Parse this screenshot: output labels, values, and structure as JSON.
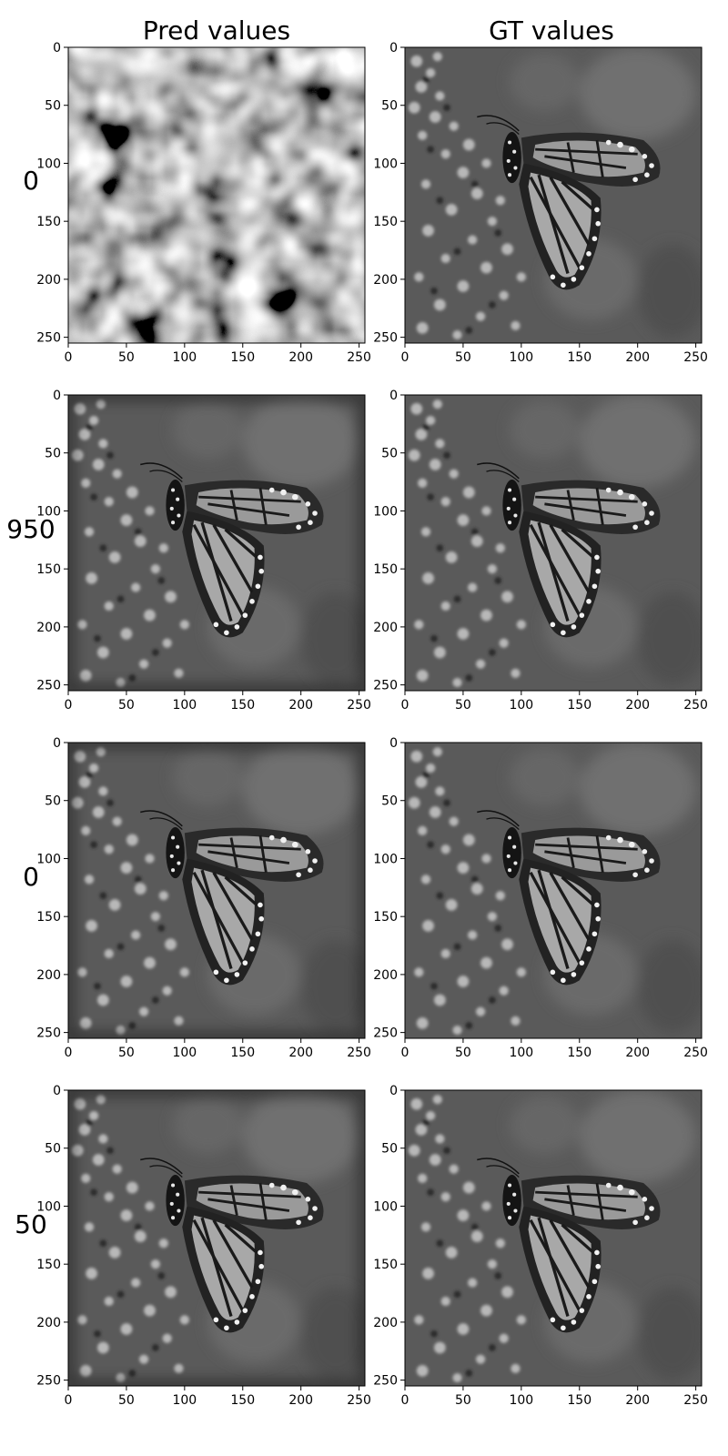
{
  "chart_data": {
    "type": "image_grid",
    "column_titles": [
      "Pred values",
      "GT values"
    ],
    "row_labels": [
      "0",
      "950",
      "0",
      "50"
    ],
    "xlim": [
      0,
      255
    ],
    "ylim": [
      255,
      0
    ],
    "x_ticks": [
      "0",
      "50",
      "100",
      "150",
      "200",
      "250"
    ],
    "y_ticks": [
      "0",
      "50",
      "100",
      "150",
      "200",
      "250"
    ],
    "grid": false,
    "panels": [
      {
        "row": 0,
        "col": 0,
        "content": "noise"
      },
      {
        "row": 0,
        "col": 1,
        "content": "butterfly"
      },
      {
        "row": 1,
        "col": 0,
        "content": "butterfly"
      },
      {
        "row": 1,
        "col": 1,
        "content": "butterfly"
      },
      {
        "row": 2,
        "col": 0,
        "content": "butterfly"
      },
      {
        "row": 2,
        "col": 1,
        "content": "butterfly"
      },
      {
        "row": 3,
        "col": 0,
        "content": "butterfly"
      },
      {
        "row": 3,
        "col": 1,
        "content": "butterfly"
      }
    ]
  }
}
